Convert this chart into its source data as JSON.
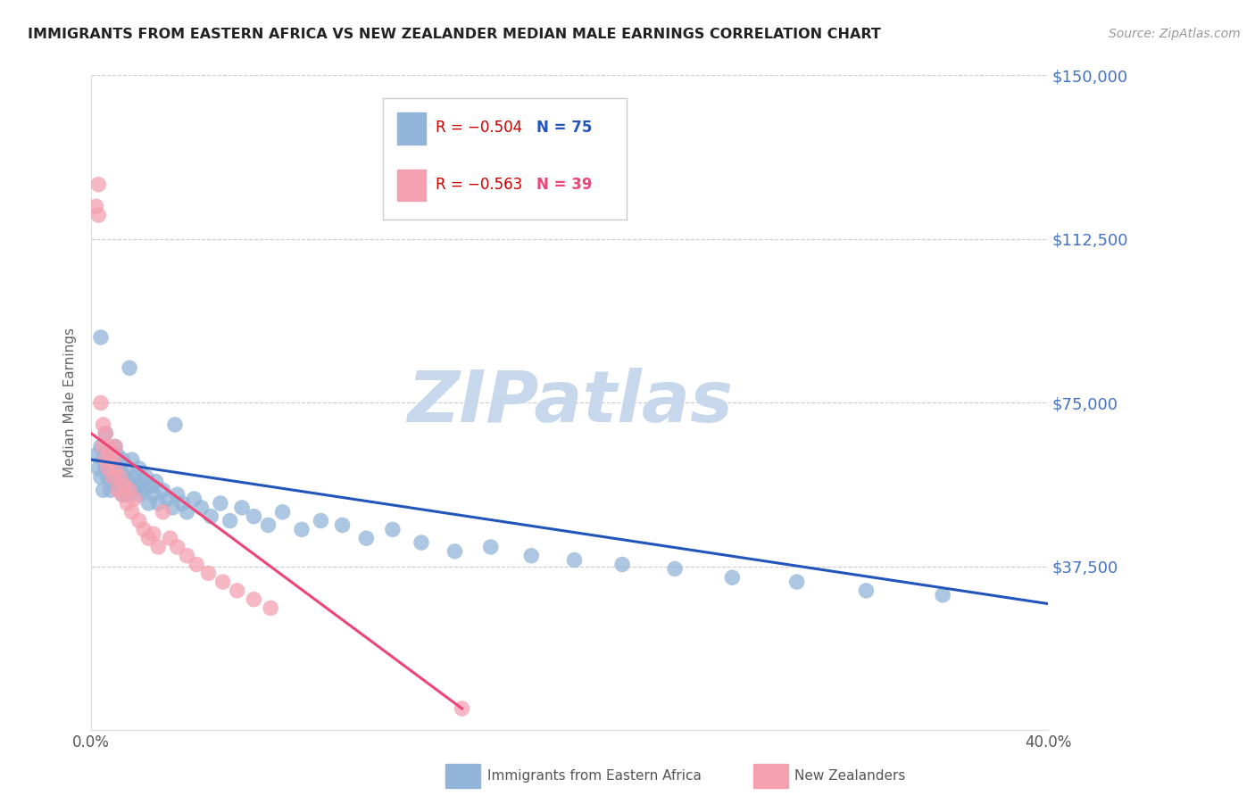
{
  "title": "IMMIGRANTS FROM EASTERN AFRICA VS NEW ZEALANDER MEDIAN MALE EARNINGS CORRELATION CHART",
  "source": "Source: ZipAtlas.com",
  "ylabel": "Median Male Earnings",
  "x_min": 0.0,
  "x_max": 0.4,
  "y_min": 0,
  "y_max": 150000,
  "y_ticks": [
    0,
    37500,
    75000,
    112500,
    150000
  ],
  "y_tick_labels": [
    "",
    "$37,500",
    "$75,000",
    "$112,500",
    "$150,000"
  ],
  "x_ticks": [
    0.0,
    0.1,
    0.2,
    0.3,
    0.4
  ],
  "x_tick_labels": [
    "0.0%",
    "",
    "",
    "",
    "40.0%"
  ],
  "legend_labels": [
    "Immigrants from Eastern Africa",
    "New Zealanders"
  ],
  "legend_r_blue": "R = −0.504",
  "legend_n_blue": "N = 75",
  "legend_r_pink": "R = −0.563",
  "legend_n_pink": "N = 39",
  "blue_color": "#92B4D8",
  "pink_color": "#F4A0B0",
  "blue_line_color": "#2255BB",
  "pink_line_color": "#EE4477",
  "right_tick_color": "#4472C4",
  "watermark_color": "#C8D8EC",
  "blue_scatter_x": [
    0.002,
    0.003,
    0.004,
    0.004,
    0.005,
    0.005,
    0.006,
    0.006,
    0.007,
    0.007,
    0.008,
    0.008,
    0.009,
    0.009,
    0.01,
    0.01,
    0.011,
    0.011,
    0.012,
    0.012,
    0.013,
    0.013,
    0.014,
    0.014,
    0.015,
    0.015,
    0.016,
    0.017,
    0.017,
    0.018,
    0.019,
    0.02,
    0.02,
    0.021,
    0.022,
    0.023,
    0.024,
    0.025,
    0.026,
    0.027,
    0.028,
    0.03,
    0.032,
    0.034,
    0.036,
    0.038,
    0.04,
    0.043,
    0.046,
    0.05,
    0.054,
    0.058,
    0.063,
    0.068,
    0.074,
    0.08,
    0.088,
    0.096,
    0.105,
    0.115,
    0.126,
    0.138,
    0.152,
    0.167,
    0.184,
    0.202,
    0.222,
    0.244,
    0.268,
    0.295,
    0.324,
    0.356,
    0.004,
    0.016,
    0.035
  ],
  "blue_scatter_y": [
    63000,
    60000,
    58000,
    65000,
    62000,
    55000,
    68000,
    60000,
    64000,
    58000,
    62000,
    55000,
    60000,
    58000,
    65000,
    57000,
    63000,
    56000,
    60000,
    58000,
    62000,
    54000,
    58000,
    56000,
    60000,
    54000,
    57000,
    55000,
    62000,
    58000,
    56000,
    60000,
    54000,
    57000,
    55000,
    58000,
    52000,
    56000,
    54000,
    57000,
    52000,
    55000,
    53000,
    51000,
    54000,
    52000,
    50000,
    53000,
    51000,
    49000,
    52000,
    48000,
    51000,
    49000,
    47000,
    50000,
    46000,
    48000,
    47000,
    44000,
    46000,
    43000,
    41000,
    42000,
    40000,
    39000,
    38000,
    37000,
    35000,
    34000,
    32000,
    31000,
    90000,
    83000,
    70000
  ],
  "pink_scatter_x": [
    0.002,
    0.003,
    0.003,
    0.004,
    0.005,
    0.005,
    0.006,
    0.006,
    0.007,
    0.007,
    0.008,
    0.009,
    0.009,
    0.01,
    0.01,
    0.011,
    0.012,
    0.013,
    0.014,
    0.015,
    0.016,
    0.017,
    0.018,
    0.02,
    0.022,
    0.024,
    0.026,
    0.028,
    0.03,
    0.033,
    0.036,
    0.04,
    0.044,
    0.049,
    0.055,
    0.061,
    0.068,
    0.075,
    0.155
  ],
  "pink_scatter_y": [
    120000,
    125000,
    118000,
    75000,
    70000,
    65000,
    68000,
    62000,
    65000,
    60000,
    63000,
    58000,
    62000,
    60000,
    65000,
    55000,
    58000,
    54000,
    56000,
    52000,
    55000,
    50000,
    53000,
    48000,
    46000,
    44000,
    45000,
    42000,
    50000,
    44000,
    42000,
    40000,
    38000,
    36000,
    34000,
    32000,
    30000,
    28000,
    5000
  ],
  "blue_line_x": [
    0.0,
    0.4
  ],
  "blue_line_y": [
    62000,
    29000
  ],
  "pink_line_x": [
    0.0,
    0.155
  ],
  "pink_line_y": [
    68000,
    5000
  ]
}
